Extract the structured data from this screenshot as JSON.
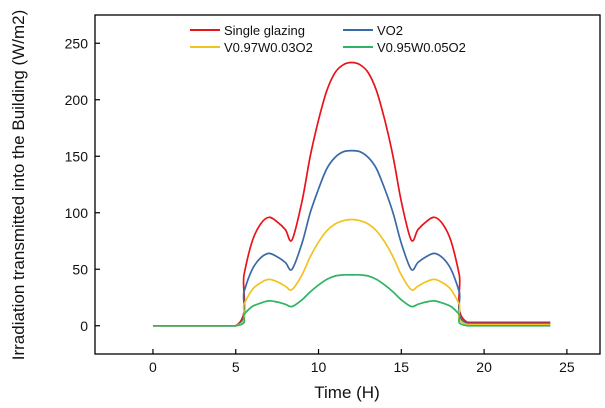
{
  "chart_data": {
    "type": "line",
    "xlabel": "Time (H)",
    "ylabel": "Irradiation transmitted into the Building (W/m2)",
    "xlim": [
      -3.5,
      27
    ],
    "ylim": [
      -25,
      275
    ],
    "xticks": [
      0,
      5,
      10,
      15,
      20,
      25
    ],
    "yticks": [
      0,
      50,
      100,
      150,
      200,
      250
    ],
    "grid": false,
    "legend_position": "top",
    "x": [
      0,
      5,
      5.5,
      6,
      6.5,
      7,
      7.5,
      8,
      8.4,
      9,
      9.5,
      10,
      10.5,
      11,
      11.5,
      12,
      12.5,
      13,
      13.5,
      14,
      14.5,
      15,
      15.6,
      16,
      16.5,
      17,
      17.5,
      18,
      18.5,
      19,
      24
    ],
    "series": [
      {
        "name": "Single glazing",
        "color": "#e8141b",
        "values": [
          0,
          0,
          45,
          75,
          90,
          96,
          92,
          85,
          76,
          110,
          150,
          182,
          208,
          224,
          231,
          233,
          231,
          224,
          208,
          182,
          150,
          110,
          76,
          85,
          92,
          96,
          90,
          75,
          45,
          3,
          3
        ]
      },
      {
        "name": "VO2",
        "color": "#3a6aa6",
        "values": [
          0,
          0,
          30,
          50,
          60,
          64,
          61,
          56,
          50,
          73,
          100,
          121,
          139,
          149,
          154,
          155,
          154,
          149,
          139,
          121,
          100,
          73,
          50,
          56,
          61,
          64,
          60,
          50,
          30,
          2,
          2
        ]
      },
      {
        "name": "V0.97W0.03O2",
        "color": "#f2c220",
        "values": [
          0,
          0,
          19,
          32,
          38,
          41,
          39,
          35,
          32,
          45,
          61,
          74,
          84,
          90,
          93,
          94,
          93,
          90,
          84,
          74,
          61,
          45,
          32,
          35,
          39,
          41,
          38,
          32,
          19,
          1,
          1
        ]
      },
      {
        "name": "V0.95W0.05O2",
        "color": "#2fb562",
        "values": [
          0,
          0,
          10,
          17,
          20,
          22,
          21,
          19,
          17,
          23,
          30,
          36,
          41,
          44,
          45,
          45,
          45,
          44,
          41,
          36,
          30,
          23,
          17,
          19,
          21,
          22,
          20,
          17,
          10,
          0,
          0
        ]
      }
    ]
  }
}
